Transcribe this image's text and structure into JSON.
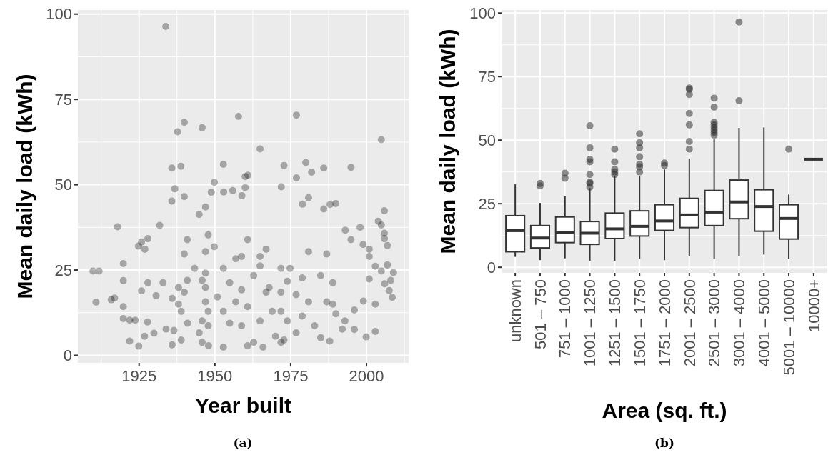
{
  "chart_data": [
    {
      "type": "scatter",
      "xlabel": "Year built",
      "ylabel": "Mean daily load (kWh)",
      "annotations": [
        "(a)"
      ],
      "color": "#000000",
      "marker": "circle",
      "grid": true,
      "xlim": [
        1904.8,
        2013.9
      ],
      "xticks": [
        1925,
        1950,
        1975,
        2000
      ],
      "ylim": [
        -2.2,
        101.2
      ],
      "yticks": [
        0,
        25,
        50,
        75,
        100
      ],
      "x": [
        1933.8,
        1957.8,
        1976.9,
        1939.9,
        1937.7,
        1945.8,
        2004.9,
        1964.9,
        1935.8,
        1938.8,
        1952.8,
        1972.8,
        1980,
        1981.9,
        1985.9,
        1994.9,
        1960,
        1960.9,
        1949.8,
        1976.9,
        1936.8,
        1935.8,
        1939.9,
        1948.8,
        1952.9,
        1955.9,
        1958.9,
        1960,
        1971.9,
        1980.9,
        1978.9,
        1988,
        1989.9,
        1985.9,
        2005.9,
        1946.9,
        1944.8,
        1917.9,
        1931.8,
        1997.9,
        2003.9,
        2004.9,
        2005.9,
        2005.9,
        2006.9,
        1993,
        1994.9,
        1998.9,
        2000.9,
        2000.9,
        2002.9,
        2004.9,
        2006.9,
        2008.9,
        1909.8,
        1911.8,
        1919.8,
        1924.8,
        1926.9,
        1927.9,
        1925.8,
        1916.9,
        1910.8,
        1915.8,
        1919.8,
        1919.8,
        1919.8,
        1921.9,
        1921.9,
        1923.7,
        1924.9,
        1925.8,
        1926.8,
        1927.8,
        1929.9,
        1927.9,
        1930.6,
        1932.9,
        1933.9,
        1935.9,
        1935.9,
        1936.5,
        1938,
        1938.9,
        1938.9,
        1939.9,
        1941,
        1940.9,
        1940.9,
        1939.9,
        1938,
        1943.3,
        1944.8,
        1945.8,
        1946.9,
        1946.9,
        1946.9,
        1946.9,
        1947.8,
        1947.8,
        1947.9,
        1945.8,
        1945.8,
        1947.8,
        1949.8,
        1950.8,
        1952.8,
        1952.8,
        1952.8,
        1954.9,
        1954.9,
        1956.9,
        1956.9,
        1958.8,
        1958.8,
        1958.8,
        1960.8,
        1960.8,
        1960.8,
        1962.8,
        1962.8,
        1964.9,
        1964.9,
        1964.9,
        1965.9,
        1966.9,
        1966.9,
        1967.9,
        1968.9,
        1970,
        1971.8,
        1971.8,
        1971.8,
        1971.8,
        1972.8,
        1973.9,
        1973.9,
        1974.8,
        1976.8,
        1976.8,
        1978.8,
        1978.8,
        1980.9,
        1980.9,
        1982.9,
        1984.9,
        1984.9,
        1986.9,
        1986.9,
        1987.9,
        1988.9,
        1988.9,
        1989.9,
        1992,
        1992.9,
        1996,
        1996,
        1999,
        1999.9,
        2000.9,
        2002.9,
        2002.9,
        2007.5,
        2008.5,
        2006,
        2008
      ],
      "values": [
        96.4,
        70,
        70.4,
        68.3,
        65.5,
        66.7,
        63.2,
        60.5,
        54.9,
        55.4,
        56,
        55.6,
        56.5,
        53.7,
        54.9,
        55.1,
        52.4,
        52.8,
        50.7,
        52,
        48.8,
        45.2,
        46.5,
        47.8,
        47.9,
        48.3,
        46.8,
        49.2,
        49.4,
        46.2,
        44.3,
        44.2,
        44.5,
        42.9,
        42.4,
        43.5,
        41.3,
        37.7,
        38.1,
        37.5,
        39.3,
        38.2,
        35.8,
        34.2,
        32.2,
        36.7,
        33.9,
        32.5,
        31.1,
        29,
        26.1,
        24.7,
        26.5,
        24.3,
        24.7,
        24.7,
        26.9,
        32,
        31.1,
        34.2,
        33.2,
        16.8,
        15.6,
        16.3,
        21.9,
        14.3,
        10.8,
        4.2,
        10.3,
        10.3,
        2.7,
        18.9,
        5.6,
        9.8,
        6.5,
        21.3,
        17.5,
        21.3,
        7.7,
        3.1,
        16.7,
        7.3,
        19.9,
        12.9,
        4.5,
        29.7,
        9.4,
        22,
        33.9,
        18.5,
        15,
        25.5,
        6.6,
        3.8,
        30.4,
        24.1,
        19.9,
        15.7,
        12.9,
        8.7,
        2.8,
        10.1,
        22,
        35.3,
        31.8,
        17.1,
        2.4,
        12.9,
        25.5,
        21.3,
        9.4,
        28.3,
        15.7,
        29,
        19.2,
        8.7,
        2.8,
        14.3,
        33.9,
        3.8,
        23.4,
        29,
        26.2,
        10.1,
        2.4,
        18.5,
        31.1,
        19.9,
        12.9,
        5.6,
        3.8,
        12.9,
        18.5,
        25.5,
        4.5,
        21.7,
        10.1,
        25.5,
        6.6,
        17.8,
        11.5,
        22.7,
        30.4,
        15.7,
        8.7,
        5.2,
        23.4,
        29.7,
        15.7,
        4.2,
        15,
        21.3,
        12.2,
        7.7,
        10.1,
        13.3,
        7.6,
        15.9,
        5.4,
        22.4,
        15,
        7,
        19,
        17,
        21,
        22
      ]
    },
    {
      "type": "box",
      "xlabel": "Area (sq. ft.)",
      "ylabel": "Mean daily load (kWh)",
      "annotations": [
        "(b)"
      ],
      "color": "#333333",
      "grid": true,
      "categories": [
        "unknown",
        "501 – 750",
        "751 – 1000",
        "1001 – 1250",
        "1251 – 1500",
        "1501 – 1750",
        "1751 – 2000",
        "2001 – 2500",
        "2501 – 3000",
        "3001 – 4000",
        "4001 – 5000",
        "5001 – 10000",
        "10000+"
      ],
      "ylim": [
        -2.2,
        101.2
      ],
      "yticks": [
        0,
        25,
        50,
        75,
        100
      ],
      "boxes": [
        {
          "low": 4.1,
          "q1": 6.1,
          "median": 14.4,
          "q3": 20.3,
          "high": 32.6
        },
        {
          "low": 2.8,
          "q1": 7.6,
          "median": 11.5,
          "q3": 16.4,
          "high": 25.3,
          "outliers": [
            32,
            33
          ]
        },
        {
          "low": 3.5,
          "q1": 9.7,
          "median": 13.7,
          "q3": 19.8,
          "high": 27.9,
          "outliers": [
            35,
            37
          ]
        },
        {
          "low": 2.6,
          "q1": 9,
          "median": 13.4,
          "q3": 18,
          "high": 31.2,
          "outliers": [
            31.5,
            33,
            33.5,
            36.5,
            41.5,
            42.5,
            47,
            55.7
          ]
        },
        {
          "low": 2.6,
          "q1": 11.3,
          "median": 15.1,
          "q3": 21.3,
          "high": 36,
          "outliers": [
            36.5,
            37.5,
            38.5,
            41.5,
            46.5
          ]
        },
        {
          "low": 3.3,
          "q1": 12.3,
          "median": 16.1,
          "q3": 22.2,
          "high": 36,
          "outliers": [
            37.5,
            39.5,
            40.5,
            43.5,
            47,
            49,
            52.5
          ]
        },
        {
          "low": 2.8,
          "q1": 14.5,
          "median": 18.2,
          "q3": 24.6,
          "high": 38.5,
          "outliers": [
            40,
            41
          ]
        },
        {
          "low": 4.3,
          "q1": 15.6,
          "median": 20.6,
          "q3": 27.1,
          "high": 42.8,
          "outliers": [
            46.5,
            49.5,
            56,
            60.5,
            68,
            70,
            70.5
          ]
        },
        {
          "low": 3.3,
          "q1": 16.4,
          "median": 21.7,
          "q3": 30.2,
          "high": 50.5,
          "outliers": [
            52,
            53,
            54,
            55,
            56,
            57,
            63,
            66.5
          ]
        },
        {
          "low": 4.4,
          "q1": 19.1,
          "median": 25.7,
          "q3": 34.3,
          "high": 54.8,
          "outliers": [
            65.5,
            96.5
          ]
        },
        {
          "low": 5,
          "q1": 14.2,
          "median": 23.9,
          "q3": 30.5,
          "high": 55
        },
        {
          "low": 3.3,
          "q1": 11.1,
          "median": 19.2,
          "q3": 24.6,
          "high": 28.6,
          "outliers": [
            46.5
          ]
        },
        {
          "low": 42.5,
          "q1": 42.5,
          "median": 42.5,
          "q3": 42.5,
          "high": 42.5
        }
      ]
    }
  ]
}
